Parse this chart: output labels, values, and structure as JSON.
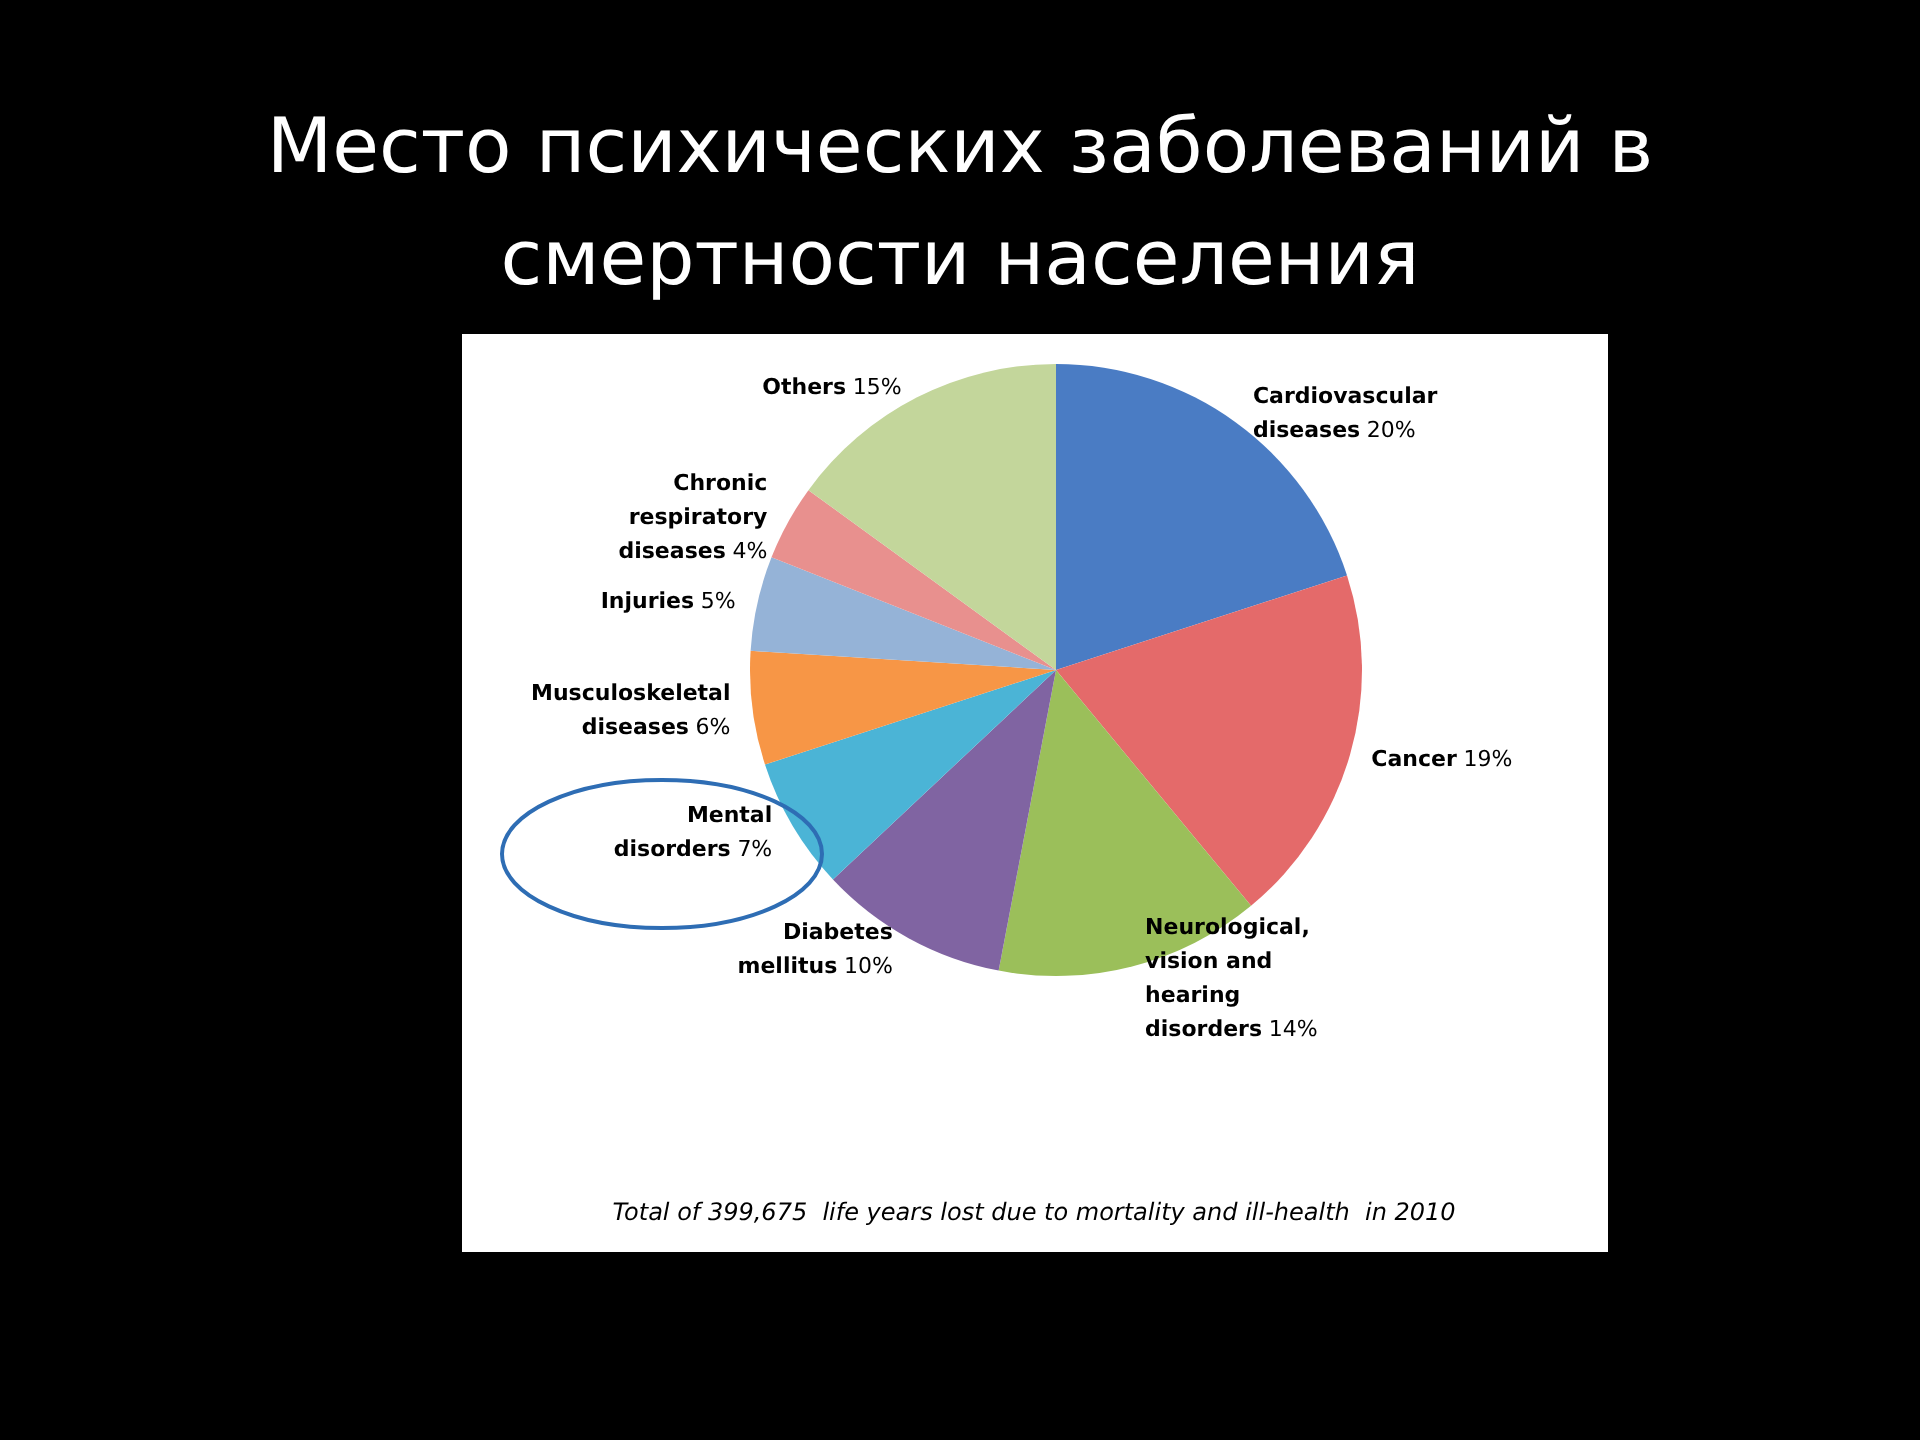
{
  "chart_data": {
    "type": "pie",
    "title": "Место психических заболеваний в смертности населения",
    "categories": [
      "Cardiovascular diseases",
      "Cancer",
      "Neurological, vision and hearing disorders",
      "Diabetes mellitus",
      "Mental disorders",
      "Musculoskeletal diseases",
      "Injuries",
      "Chronic respiratory diseases",
      "Others"
    ],
    "values": [
      20,
      19,
      14,
      10,
      7,
      6,
      5,
      4,
      15
    ],
    "colors": [
      "#4a7cc4",
      "#e46a6a",
      "#9bbf5a",
      "#8064a2",
      "#4bb4d6",
      "#f79646",
      "#95b3d7",
      "#e8908e",
      "#c3d69b"
    ],
    "legend": false,
    "value_labels": [
      "20%",
      "19%",
      "14%",
      "10%",
      "7%",
      "6%",
      "5%",
      "4%",
      "15%"
    ],
    "annotations": [
      "Total of 399,675  life years lost due to mortality and ill-health  in 2010"
    ]
  }
}
